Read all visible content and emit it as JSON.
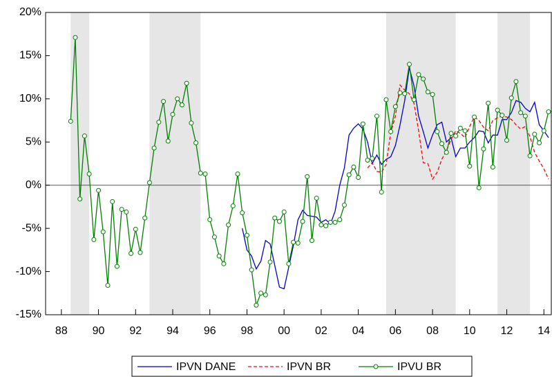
{
  "chart_data": {
    "type": "line",
    "x": [
      1988.5,
      1988.75,
      1989,
      1989.25,
      1989.5,
      1989.75,
      1990,
      1990.25,
      1990.5,
      1990.75,
      1991,
      1991.25,
      1991.5,
      1991.75,
      1992,
      1992.25,
      1992.5,
      1992.75,
      1993,
      1993.25,
      1993.5,
      1993.75,
      1994,
      1994.25,
      1994.5,
      1994.75,
      1995,
      1995.25,
      1995.5,
      1995.75,
      1996,
      1996.25,
      1996.5,
      1996.75,
      1997,
      1997.25,
      1997.5,
      1997.75,
      1998,
      1998.25,
      1998.5,
      1998.75,
      1999,
      1999.25,
      1999.5,
      1999.75,
      2000,
      2000.25,
      2000.5,
      2000.75,
      2001,
      2001.25,
      2001.5,
      2001.75,
      2002,
      2002.25,
      2002.5,
      2002.75,
      2003,
      2003.25,
      2003.5,
      2003.75,
      2004,
      2004.25,
      2004.5,
      2004.75,
      2005,
      2005.25,
      2005.5,
      2005.75,
      2006,
      2006.25,
      2006.5,
      2006.75,
      2007,
      2007.25,
      2007.5,
      2007.75,
      2008,
      2008.25,
      2008.5,
      2008.75,
      2009,
      2009.25,
      2009.5,
      2009.75,
      2010,
      2010.25,
      2010.5,
      2010.75,
      2011,
      2011.25,
      2011.5,
      2011.75,
      2012,
      2012.25,
      2012.5,
      2012.75,
      2013,
      2013.25,
      2013.5,
      2013.75,
      2014,
      2014.25
    ],
    "series": [
      {
        "name": "IPVN DANE",
        "color": "#0000cc",
        "dash": "solid",
        "markers": false,
        "values": [
          null,
          null,
          null,
          null,
          null,
          null,
          null,
          null,
          null,
          null,
          null,
          null,
          null,
          null,
          null,
          null,
          null,
          null,
          null,
          null,
          null,
          null,
          null,
          null,
          null,
          null,
          null,
          null,
          null,
          null,
          null,
          null,
          null,
          null,
          null,
          null,
          null,
          -5.0,
          -7.5,
          -8.2,
          -9.7,
          -8.8,
          -6.4,
          -6.8,
          -9.3,
          -11.8,
          -12.0,
          -9.5,
          -7.0,
          -4.0,
          -2.9,
          -3.5,
          -3.6,
          -3.7,
          -4.3,
          -4.0,
          -4.5,
          -3.0,
          0.0,
          2.0,
          5.8,
          6.6,
          7.1,
          6.5,
          5.0,
          2.5,
          3.5,
          2.4,
          3.0,
          3.3,
          4.6,
          7.0,
          9.8,
          13.6,
          11.5,
          8.0,
          6.2,
          4.3,
          5.8,
          7.0,
          7.3,
          5.0,
          5.5,
          3.3,
          4.3,
          4.3,
          5.0,
          5.5,
          6.3,
          6.2,
          4.9,
          5.8,
          5.8,
          7.6,
          7.6,
          8.4,
          9.8,
          9.6,
          8.9,
          8.5,
          9.6,
          7.0,
          6.3,
          5.5
        ]
      },
      {
        "name": "IPVN BR",
        "color": "#ff0000",
        "dash": "dashed",
        "markers": false,
        "values": [
          null,
          null,
          null,
          null,
          null,
          null,
          null,
          null,
          null,
          null,
          null,
          null,
          null,
          null,
          null,
          null,
          null,
          null,
          null,
          null,
          null,
          null,
          null,
          null,
          null,
          null,
          null,
          null,
          null,
          null,
          null,
          null,
          null,
          null,
          null,
          null,
          null,
          null,
          null,
          null,
          null,
          null,
          null,
          null,
          null,
          null,
          null,
          null,
          null,
          null,
          null,
          null,
          null,
          null,
          null,
          null,
          null,
          null,
          null,
          null,
          null,
          null,
          null,
          null,
          2.0,
          2.6,
          1.6,
          1.5,
          2.4,
          6.1,
          8.0,
          11.6,
          11.0,
          10.6,
          9.5,
          6.3,
          2.6,
          2.5,
          0.7,
          1.5,
          3.0,
          4.0,
          5.3,
          6.3,
          6.0,
          5.5,
          6.8,
          7.9,
          7.5,
          6.7,
          6.3,
          7.5,
          7.8,
          8.0,
          7.9,
          7.6,
          7.0,
          6.5,
          6.8,
          5.6,
          3.8,
          2.8,
          1.9,
          0.7
        ]
      },
      {
        "name": "IPVU BR",
        "color": "#008000",
        "dash": "solid",
        "markers": true,
        "values": [
          7.4,
          17.1,
          -1.6,
          5.7,
          1.3,
          -6.3,
          -0.6,
          -5.4,
          -11.6,
          -1.9,
          -9.4,
          -2.8,
          -3.1,
          -7.9,
          -5.1,
          -7.8,
          -3.8,
          0.3,
          4.3,
          7.3,
          9.7,
          5.1,
          8.2,
          10.0,
          9.3,
          11.8,
          7.2,
          4.9,
          1.4,
          1.3,
          -4.0,
          -6.0,
          -8.2,
          -9.1,
          -4.6,
          -2.4,
          1.3,
          -3.2,
          -5.8,
          -9.8,
          -13.9,
          -12.5,
          -12.7,
          -8.9,
          -3.8,
          -4.2,
          -3.1,
          -9.1,
          -6.6,
          -6.7,
          -4.2,
          1.0,
          -6.4,
          -1.5,
          -4.6,
          -4.7,
          -4.3,
          -4.3,
          -4.0,
          -2.3,
          1.2,
          2.1,
          0.9,
          7.1,
          2.9,
          3.1,
          8.0,
          -0.8,
          9.9,
          6.2,
          9.1,
          10.7,
          10.6,
          14.0,
          9.9,
          12.8,
          12.3,
          10.8,
          10.5,
          6.2,
          4.8,
          3.8,
          6.0,
          5.7,
          6.6,
          6.3,
          2.2,
          7.9,
          -0.3,
          4.2,
          9.5,
          2.1,
          8.7,
          8.1,
          5.2,
          10.1,
          12.0,
          8.4,
          8.0,
          3.4,
          5.9,
          4.9,
          6.3,
          8.5
        ]
      }
    ],
    "shaded_periods": [
      [
        1988.5,
        1989.5
      ],
      [
        1992.75,
        1995.5
      ],
      [
        2005.5,
        2009.25
      ],
      [
        2011.5,
        2013.25
      ]
    ],
    "reference_line": 0,
    "xlim": [
      1987.15,
      2014.4
    ],
    "xticks": [
      {
        "value": 1988,
        "label": "88"
      },
      {
        "value": 1990,
        "label": "90"
      },
      {
        "value": 1992,
        "label": "92"
      },
      {
        "value": 1994,
        "label": "94"
      },
      {
        "value": 1996,
        "label": "96"
      },
      {
        "value": 1998,
        "label": "98"
      },
      {
        "value": 2000,
        "label": "00"
      },
      {
        "value": 2002,
        "label": "02"
      },
      {
        "value": 2004,
        "label": "04"
      },
      {
        "value": 2006,
        "label": "06"
      },
      {
        "value": 2008,
        "label": "08"
      },
      {
        "value": 2010,
        "label": "10"
      },
      {
        "value": 2012,
        "label": "12"
      },
      {
        "value": 2014,
        "label": "14"
      }
    ],
    "ylim": [
      -15,
      20
    ],
    "yticks": [
      {
        "value": -15,
        "label": "-15%"
      },
      {
        "value": -10,
        "label": "-10%"
      },
      {
        "value": -5,
        "label": "-5%"
      },
      {
        "value": 0,
        "label": "0%"
      },
      {
        "value": 5,
        "label": "5%"
      },
      {
        "value": 10,
        "label": "10%"
      },
      {
        "value": 15,
        "label": "15%"
      },
      {
        "value": 20,
        "label": "20%"
      }
    ],
    "legend": "bottom"
  }
}
